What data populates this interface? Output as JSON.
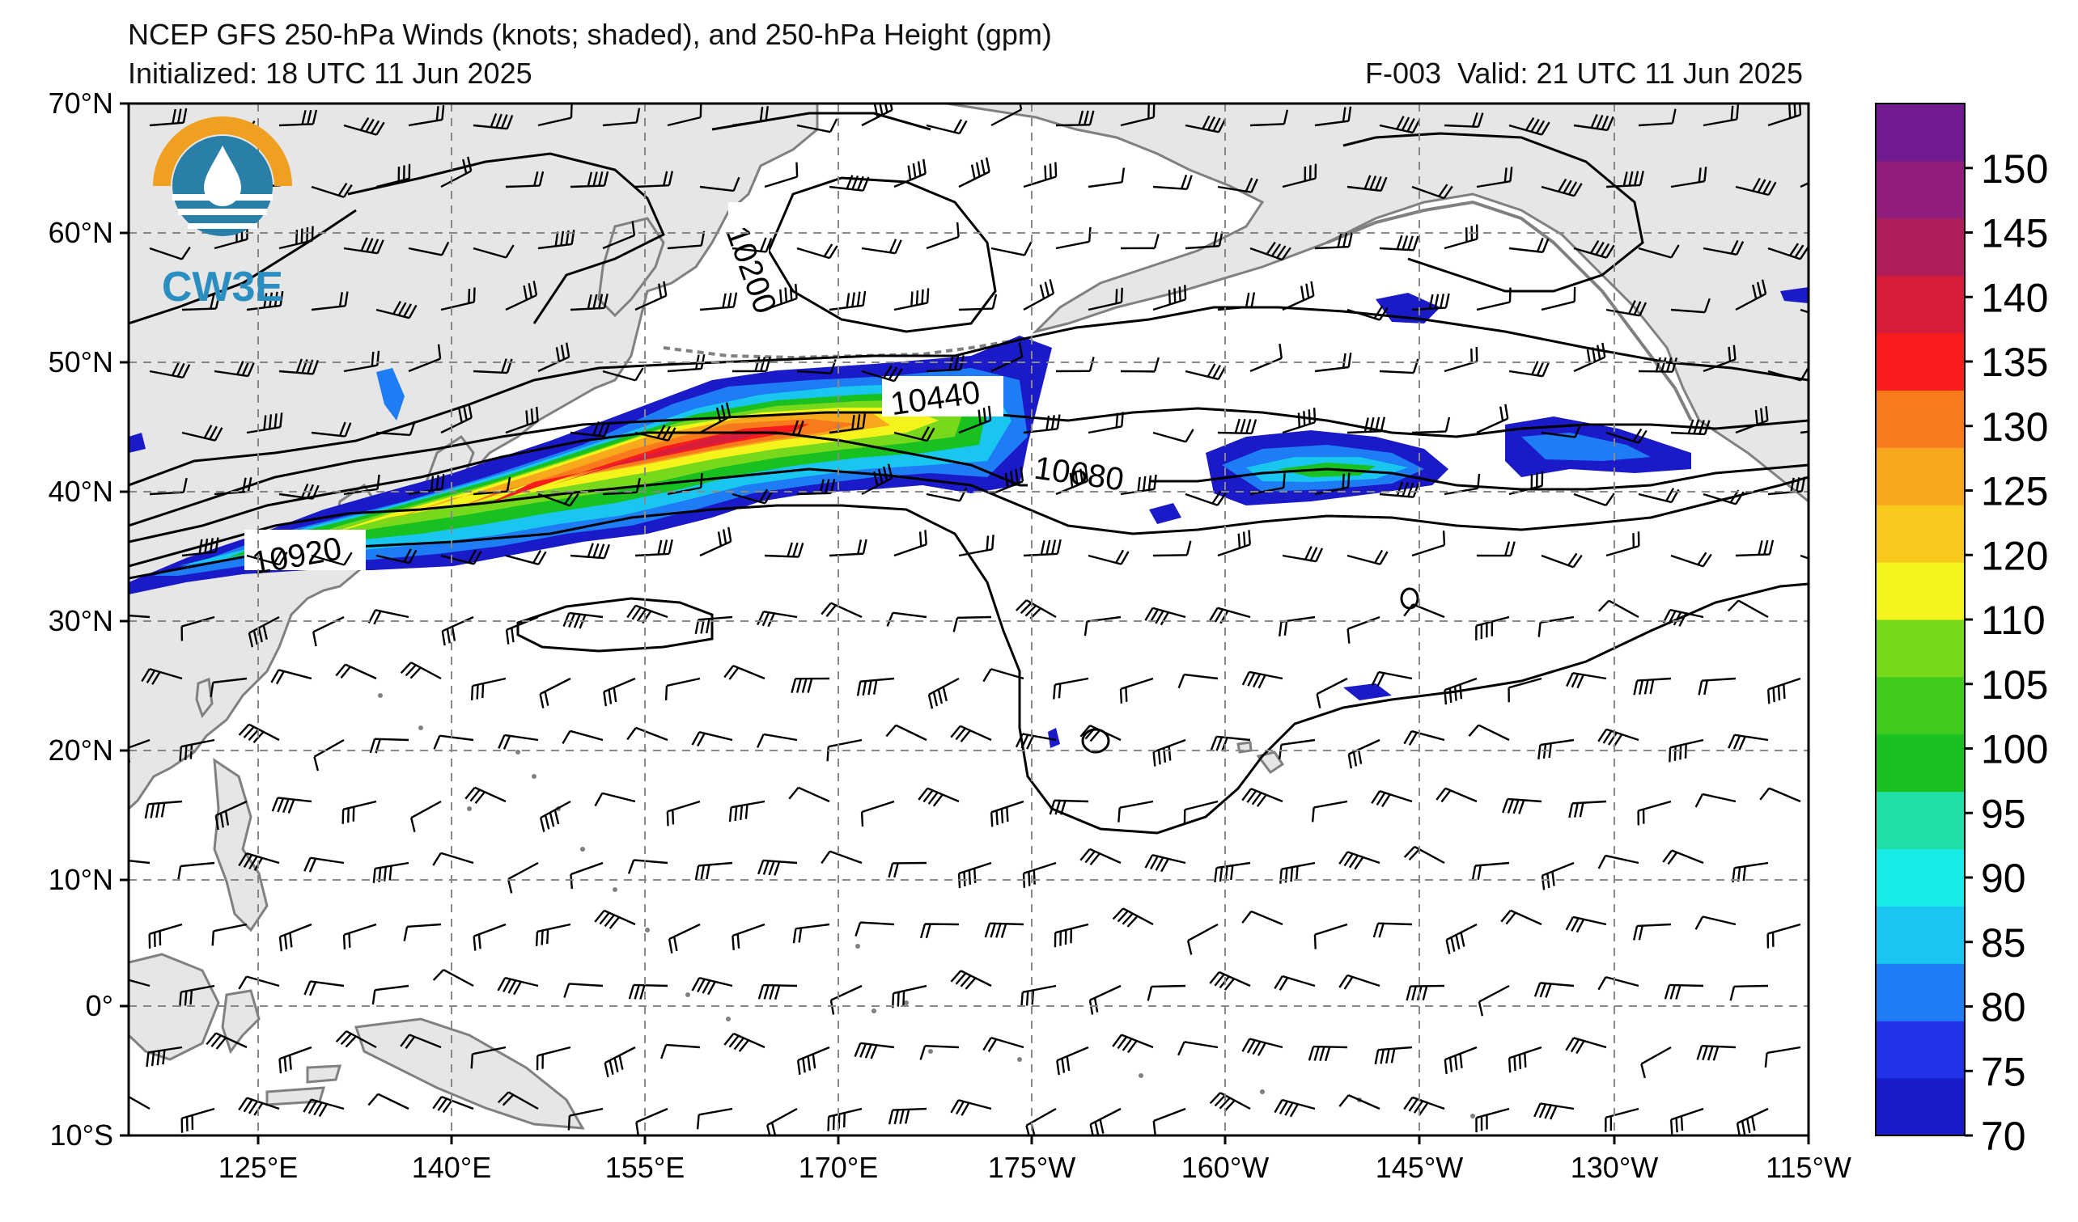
{
  "title": {
    "line1": "NCEP GFS 250-hPa Winds (knots; shaded), and 250-hPa Height (gpm)",
    "initialized": "Initialized: 18 UTC 11 Jun 2025",
    "valid": "F-003  Valid: 21 UTC 11 Jun 2025"
  },
  "logo": {
    "text": "CW3E"
  },
  "axes": {
    "lat_labels": [
      "70°N",
      "60°N",
      "50°N",
      "40°N",
      "30°N",
      "20°N",
      "10°N",
      "0°",
      "10°S"
    ],
    "lon_labels": [
      "125°E",
      "140°E",
      "155°E",
      "170°E",
      "175°W",
      "160°W",
      "145°W",
      "130°W",
      "115°W"
    ],
    "lat_range": [
      -10,
      70
    ],
    "lon_range_east_deg": [
      115,
      245
    ]
  },
  "contour_labels": [
    "10200",
    "10440",
    "10680",
    "10920"
  ],
  "colorbar": {
    "ticks": [
      "70",
      "75",
      "80",
      "85",
      "90",
      "95",
      "100",
      "105",
      "110",
      "120",
      "125",
      "130",
      "135",
      "140",
      "145",
      "150"
    ],
    "colors": [
      "#1a1ac8",
      "#2233e8",
      "#1e7cf5",
      "#19c6f0",
      "#18ece6",
      "#20e0a8",
      "#18c020",
      "#40cc1c",
      "#78d81c",
      "#f4f41c",
      "#f8c81c",
      "#f8a81c",
      "#f87a1c",
      "#f81c1c",
      "#d81c3c",
      "#b01c5c",
      "#901c7c",
      "#701c90"
    ]
  },
  "land_color": "#e6e6e6",
  "coast_color": "#808080",
  "grid_color": "#888888"
}
